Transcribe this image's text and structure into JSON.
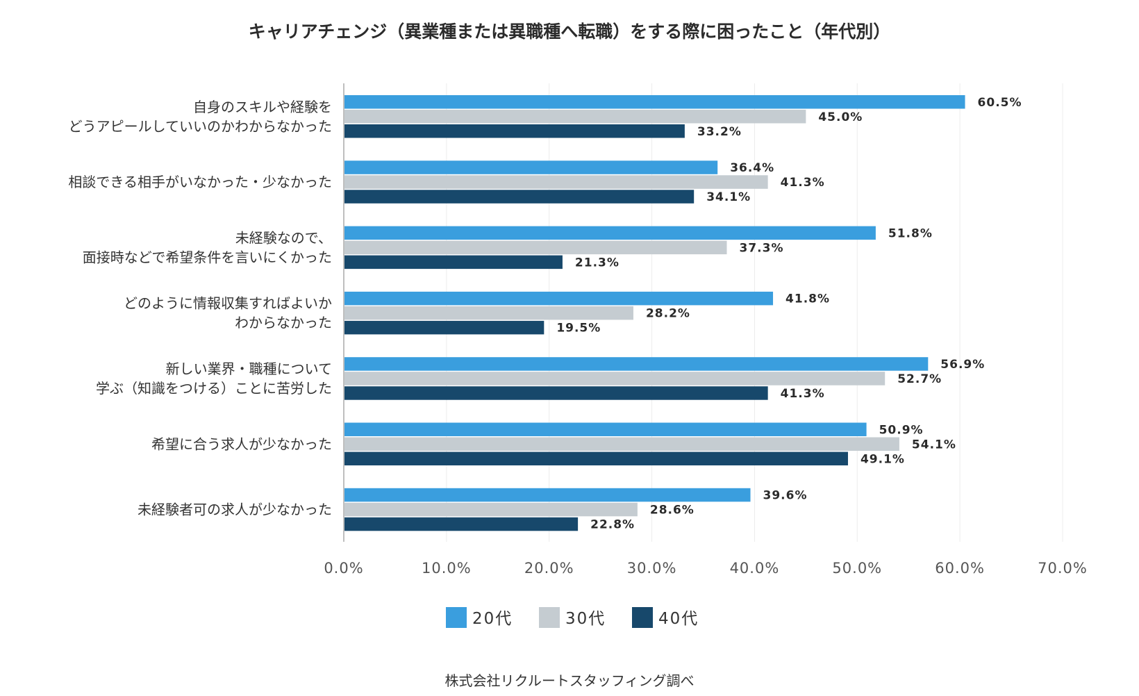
{
  "chart_data": {
    "type": "bar",
    "orientation": "horizontal",
    "title": "キャリアチェンジ（異業種または異職種へ転職）をする際に困ったこと（年代別）",
    "categories": [
      [
        "自身のスキルや経験を",
        "どうアピールしていいのかわからなかった"
      ],
      [
        "相談できる相手がいなかった・少なかった"
      ],
      [
        "未経験なので、",
        "面接時などで希望条件を言いにくかった"
      ],
      [
        "どのように情報収集すればよいか",
        "わからなかった"
      ],
      [
        "新しい業界・職種について",
        "学ぶ（知識をつける）ことに苦労した"
      ],
      [
        "希望に合う求人が少なかった"
      ],
      [
        "未経験者可の求人が少なかった"
      ]
    ],
    "series": [
      {
        "name": "20代",
        "color": "#3a9ede",
        "values": [
          60.5,
          36.4,
          51.8,
          41.8,
          56.9,
          50.9,
          39.6
        ]
      },
      {
        "name": "30代",
        "color": "#c5ccd1",
        "values": [
          45.0,
          41.3,
          37.3,
          28.2,
          52.7,
          54.1,
          28.6
        ]
      },
      {
        "name": "40代",
        "color": "#17486b",
        "values": [
          33.2,
          34.1,
          21.3,
          19.5,
          41.3,
          49.1,
          22.8
        ]
      }
    ],
    "xlim": [
      0,
      70
    ],
    "xticks": [
      0,
      10,
      20,
      30,
      40,
      50,
      60,
      70
    ],
    "tick_format": "{v}.0%",
    "value_format": "{v}%",
    "legend": "bottom-center",
    "grid": true
  },
  "source": "株式会社リクルートスタッフィング調べ"
}
